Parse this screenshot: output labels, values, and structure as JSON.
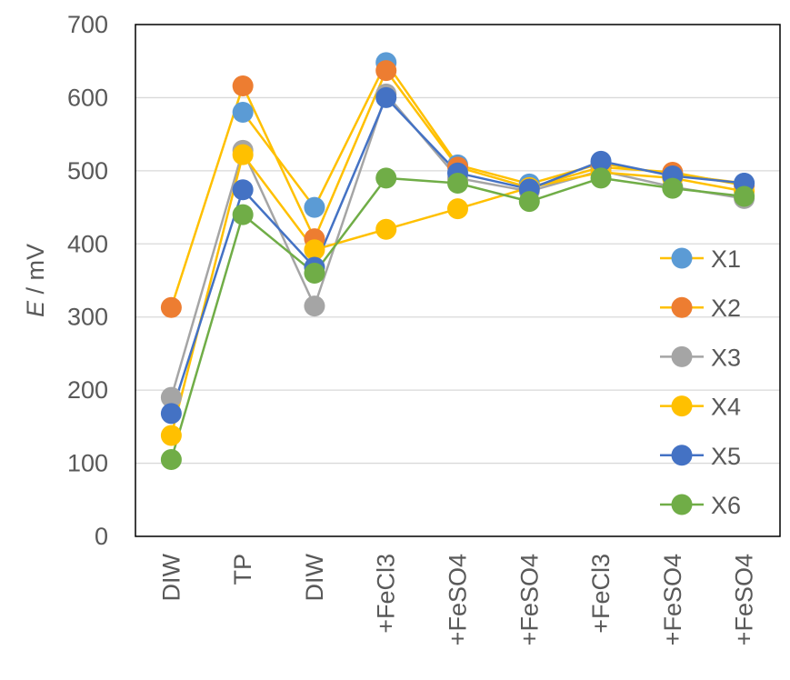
{
  "chart_data": {
    "type": "line",
    "title": "",
    "xlabel": "",
    "ylabel": {
      "italic_symbol": "E",
      "unit_text": " / mV"
    },
    "categories": [
      "DIW",
      "TP",
      "DIW",
      "+FeCl3",
      "+FeSO4",
      "+FeSO4",
      "+FeCl3",
      "+FeSO4",
      "+FeSO4"
    ],
    "ylim": [
      0,
      700
    ],
    "yticks": [
      0,
      100,
      200,
      300,
      400,
      500,
      600,
      700
    ],
    "grid": true,
    "legend_position": "right",
    "line_color": "#FFC000",
    "series": [
      {
        "name": "X1",
        "color": "#5B9BD5",
        "line_color": "#FFC000",
        "values": [
          null,
          580,
          450,
          648,
          508,
          482,
          510,
          495,
          483
        ]
      },
      {
        "name": "X2",
        "color": "#ED7D31",
        "line_color": "#FFC000",
        "values": [
          313,
          616,
          407,
          637,
          505,
          477,
          505,
          498,
          480
        ]
      },
      {
        "name": "X3",
        "color": "#A5A5A5",
        "line_color": "#A5A5A5",
        "values": [
          190,
          528,
          315,
          605,
          490,
          472,
          500,
          478,
          462
        ]
      },
      {
        "name": "X4",
        "color": "#FFC000",
        "line_color": "#FFC000",
        "values": [
          138,
          522,
          392,
          420,
          448,
          477,
          498,
          490,
          472
        ]
      },
      {
        "name": "X5",
        "color": "#4472C4",
        "line_color": "#4472C4",
        "values": [
          168,
          474,
          368,
          600,
          497,
          475,
          513,
          493,
          483
        ]
      },
      {
        "name": "X6",
        "color": "#70AD47",
        "line_color": "#70AD47",
        "values": [
          105,
          440,
          360,
          490,
          483,
          458,
          490,
          476,
          465
        ]
      }
    ]
  }
}
